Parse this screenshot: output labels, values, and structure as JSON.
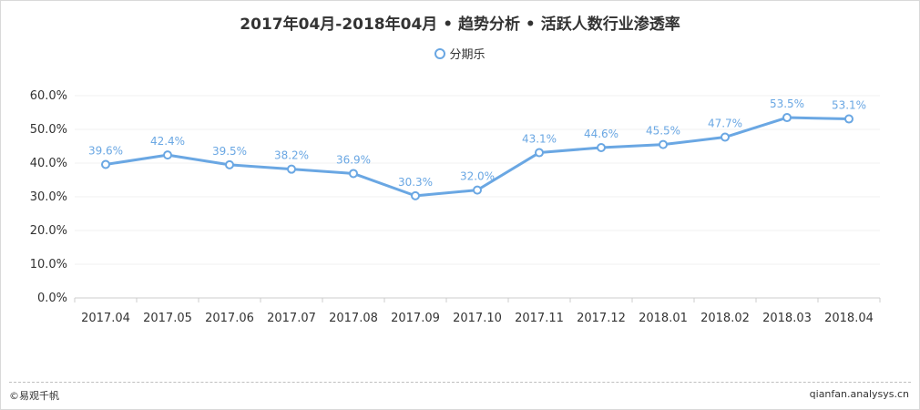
{
  "chart_data": {
    "type": "line",
    "title": "2017年04月-2018年04月 • 趋势分析 • 活跃人数行业渗透率",
    "categories": [
      "2017.04",
      "2017.05",
      "2017.06",
      "2017.07",
      "2017.08",
      "2017.09",
      "2017.10",
      "2017.11",
      "2017.12",
      "2018.01",
      "2018.02",
      "2018.03",
      "2018.04"
    ],
    "series": [
      {
        "name": "分期乐",
        "values": [
          39.6,
          42.4,
          39.5,
          38.2,
          36.9,
          30.3,
          32.0,
          43.1,
          44.6,
          45.5,
          47.7,
          53.5,
          53.1
        ],
        "labels": [
          "39.6%",
          "42.4%",
          "39.5%",
          "38.2%",
          "36.9%",
          "30.3%",
          "32.0%",
          "43.1%",
          "44.6%",
          "45.5%",
          "47.7%",
          "53.5%",
          "53.1%"
        ],
        "color": "#6aa7e3"
      }
    ],
    "yticks": [
      "0.0%",
      "10.0%",
      "20.0%",
      "30.0%",
      "40.0%",
      "50.0%",
      "60.0%"
    ],
    "ylim": [
      0,
      60
    ],
    "legend_position": "top-center",
    "grid": true
  },
  "footer": {
    "copyright": "©易观千帆",
    "site": "qianfan.analysys.cn"
  }
}
